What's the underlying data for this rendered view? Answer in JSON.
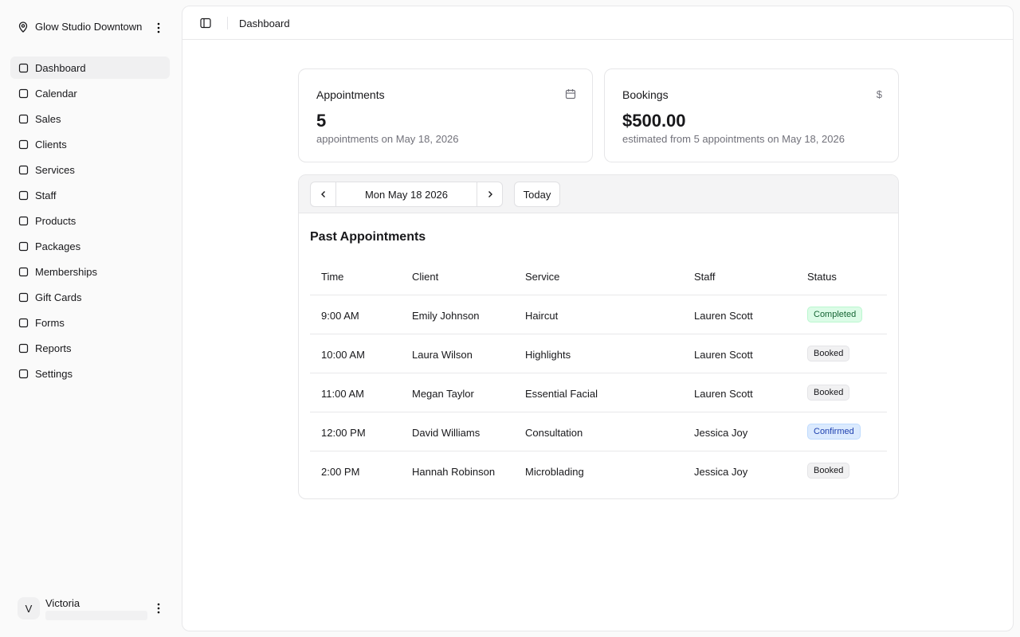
{
  "sidebar": {
    "location": "Glow Studio Downtown",
    "nav": [
      "Dashboard",
      "Calendar",
      "Sales",
      "Clients",
      "Services",
      "Staff",
      "Products",
      "Packages",
      "Memberships",
      "Gift Cards",
      "Forms",
      "Reports",
      "Settings"
    ],
    "user": {
      "initial": "V",
      "name": "Victoria"
    }
  },
  "header": {
    "breadcrumb": "Dashboard"
  },
  "cards": [
    {
      "title": "Appointments",
      "value": "5",
      "caption": "appointments on May 18, 2026"
    },
    {
      "title": "Bookings",
      "icon": "$",
      "value": "$500.00",
      "caption": "estimated from 5 appointments on May 18, 2026"
    }
  ],
  "date_nav": {
    "date": "Mon May 18 2026",
    "today": "Today"
  },
  "table": {
    "title": "Past Appointments",
    "columns": [
      "Time",
      "Client",
      "Service",
      "Staff",
      "Status"
    ],
    "rows": [
      [
        "9:00 AM",
        "Emily Johnson",
        "Haircut",
        "Lauren Scott",
        "Completed"
      ],
      [
        "10:00 AM",
        "Laura Wilson",
        "Highlights",
        "Lauren Scott",
        "Booked"
      ],
      [
        "11:00 AM",
        "Megan Taylor",
        "Essential Facial",
        "Lauren Scott",
        "Booked"
      ],
      [
        "12:00 PM",
        "David Williams",
        "Consultation",
        "Jessica Joy",
        "Confirmed"
      ],
      [
        "2:00 PM",
        "Hannah Robinson",
        "Microblading",
        "Jessica Joy",
        "Booked"
      ]
    ]
  }
}
